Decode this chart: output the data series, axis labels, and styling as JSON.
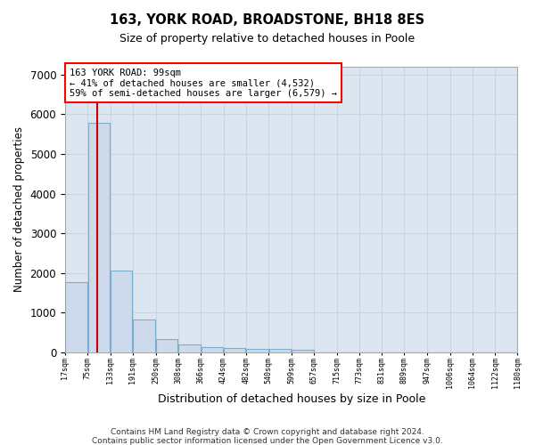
{
  "title1": "163, YORK ROAD, BROADSTONE, BH18 8ES",
  "title2": "Size of property relative to detached houses in Poole",
  "xlabel": "Distribution of detached houses by size in Poole",
  "ylabel": "Number of detached properties",
  "bar_color": "#ccdaeb",
  "bar_edge_color": "#7badd1",
  "grid_color": "#c8d4e0",
  "bg_color": "#dce6f0",
  "vline_color": "#cc0000",
  "property_sqm": 99,
  "annotation_text": "163 YORK ROAD: 99sqm\n← 41% of detached houses are smaller (4,532)\n59% of semi-detached houses are larger (6,579) →",
  "bins": [
    17,
    75,
    133,
    191,
    250,
    308,
    366,
    424,
    482,
    540,
    599,
    657,
    715,
    773,
    831,
    889,
    947,
    1006,
    1064,
    1122,
    1180
  ],
  "counts": [
    1780,
    5780,
    2060,
    820,
    340,
    195,
    130,
    110,
    95,
    90,
    75,
    0,
    0,
    0,
    0,
    0,
    0,
    0,
    0,
    0
  ],
  "ylim": [
    0,
    7200
  ],
  "yticks": [
    0,
    1000,
    2000,
    3000,
    4000,
    5000,
    6000,
    7000
  ],
  "footer1": "Contains HM Land Registry data © Crown copyright and database right 2024.",
  "footer2": "Contains public sector information licensed under the Open Government Licence v3.0."
}
